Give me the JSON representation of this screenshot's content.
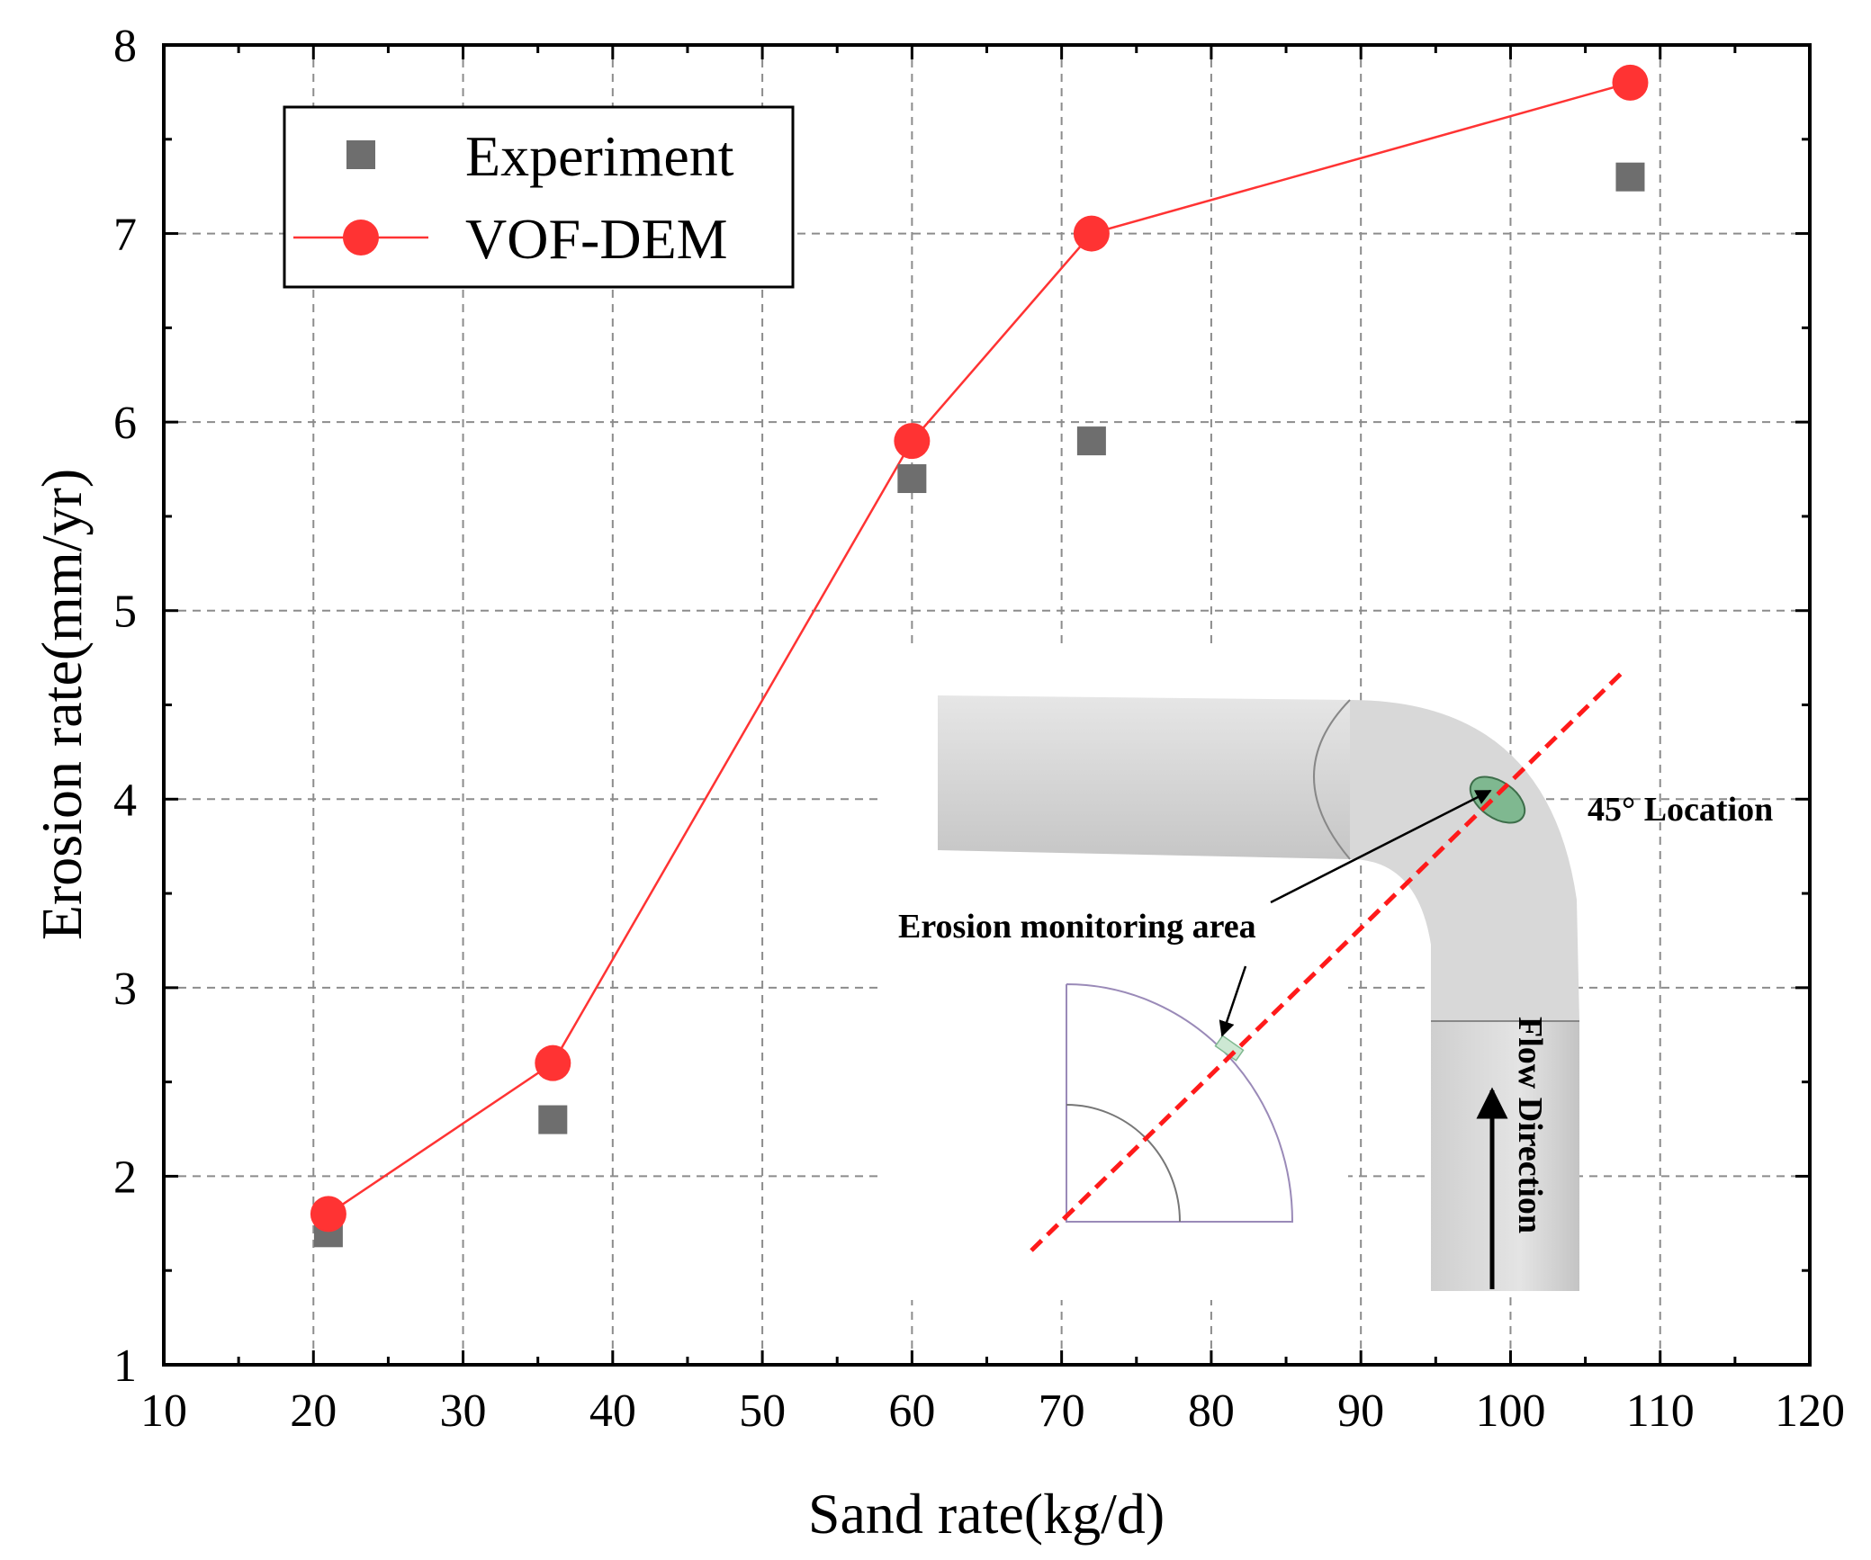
{
  "chart_data": {
    "type": "scatter",
    "title": "",
    "xlabel": "Sand rate(kg/d)",
    "ylabel": "Erosion rate(mm/yr)",
    "xlim": [
      10,
      120
    ],
    "ylim": [
      1,
      8
    ],
    "xticks": [
      10,
      20,
      30,
      40,
      50,
      60,
      70,
      80,
      90,
      100,
      110,
      120
    ],
    "yticks": [
      1,
      2,
      3,
      4,
      5,
      6,
      7,
      8
    ],
    "grid": true,
    "legend_position": "top-left",
    "series": [
      {
        "name": "Experiment",
        "style": "markers",
        "marker": "square",
        "color": "#6e6e6e",
        "x": [
          21,
          36,
          60,
          72,
          108
        ],
        "y": [
          1.7,
          2.3,
          5.7,
          5.9,
          7.3
        ]
      },
      {
        "name": "VOF-DEM",
        "style": "line+markers",
        "marker": "circle",
        "color": "#ff3333",
        "x": [
          21,
          36,
          60,
          72,
          108
        ],
        "y": [
          1.8,
          2.6,
          5.9,
          7.0,
          7.8
        ]
      }
    ]
  },
  "inset": {
    "annotations": {
      "location": "45° Location",
      "monitoring_area": "Erosion monitoring area",
      "flow": "Flow Direction"
    },
    "icon": "pipe-elbow-diagram",
    "colors": {
      "dashed_line": "#ff1a1a",
      "monitor_patch": "#7fb890",
      "pipe": "#d9d9d9"
    }
  }
}
